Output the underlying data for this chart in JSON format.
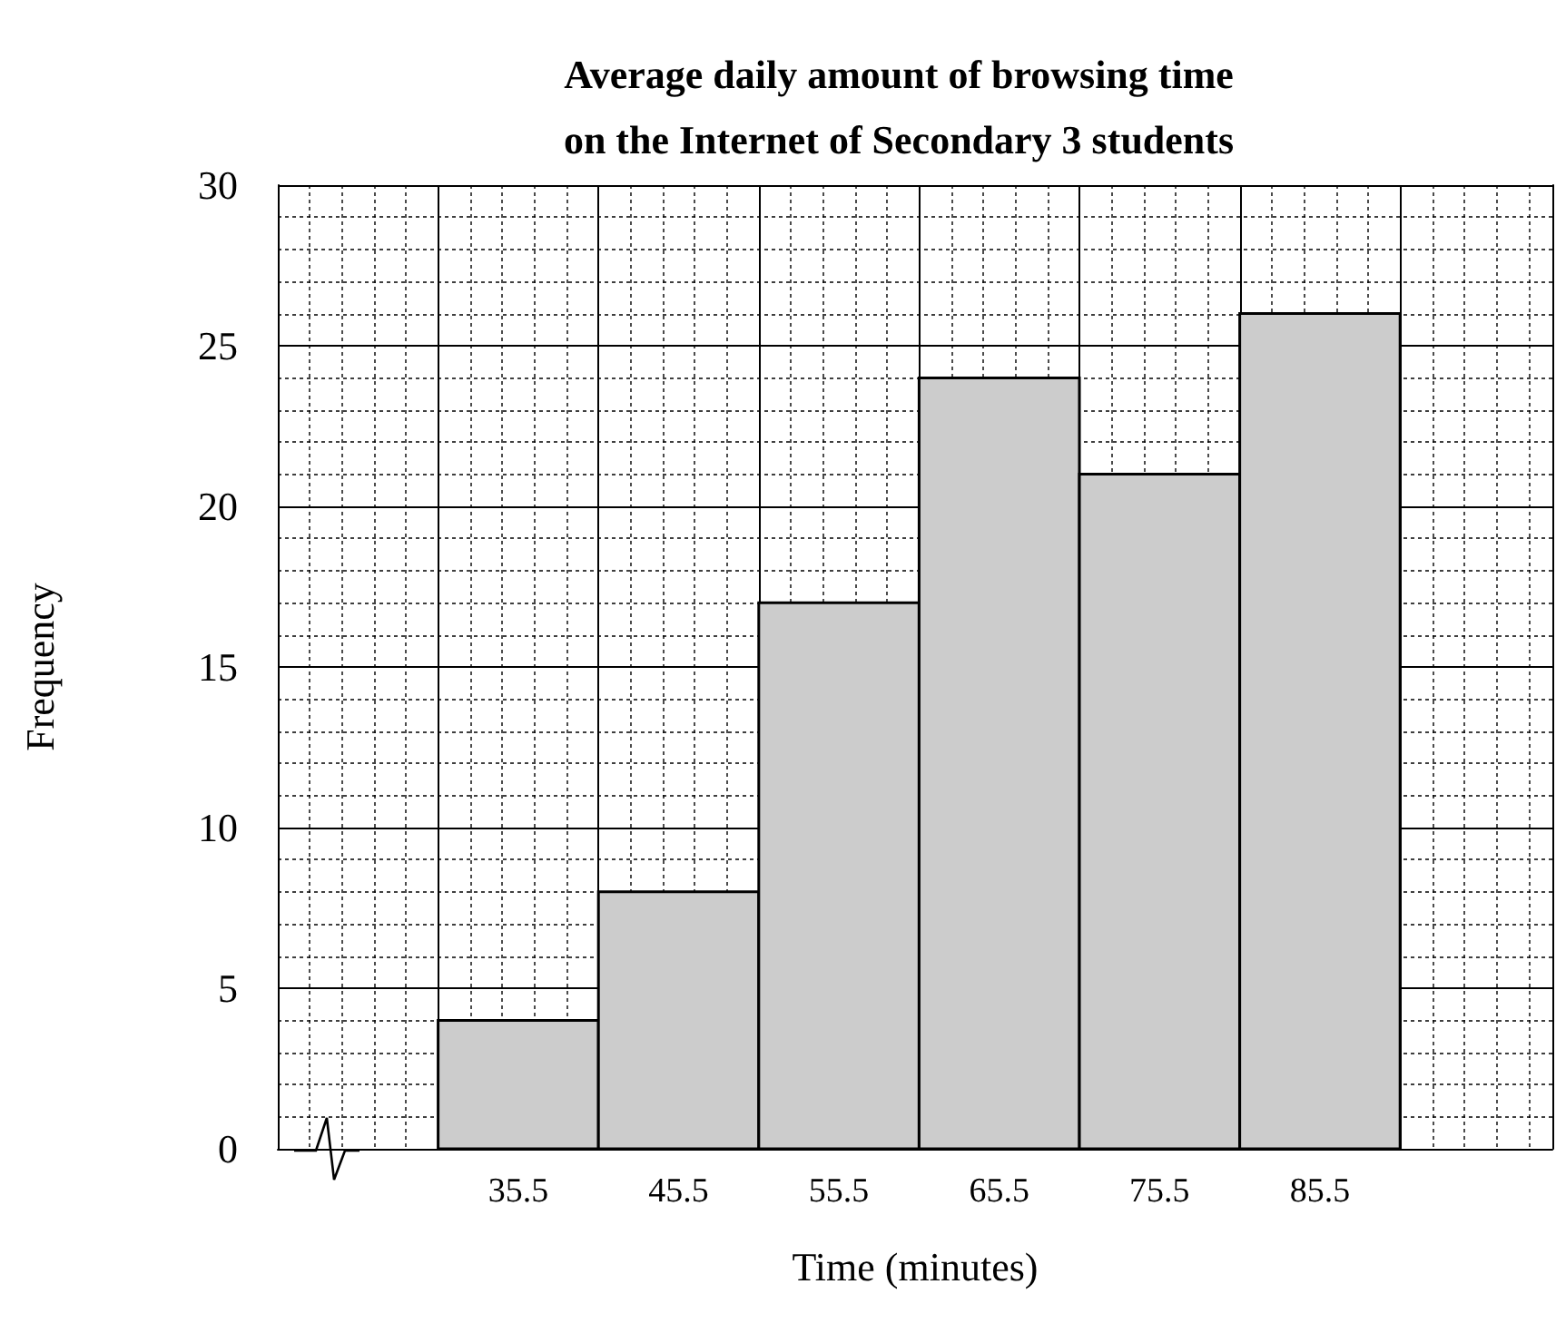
{
  "chart_data": {
    "type": "histogram",
    "title": "Average daily amount of browsing time\non the Internet of Secondary 3 students",
    "xlabel": "Time (minutes)",
    "ylabel": "Frequency",
    "bins": [
      30.5,
      40.5,
      50.5,
      60.5,
      70.5,
      80.5,
      90.5
    ],
    "values": [
      4,
      8,
      17,
      24,
      21,
      26
    ],
    "color": "#cccccc",
    "xlim": [
      20.5,
      100
    ],
    "xticks": [
      35.5,
      45.5,
      55.5,
      65.5,
      75.5,
      85.5
    ],
    "ylim": [
      0,
      30
    ],
    "yticks": [
      0,
      5,
      10,
      15,
      20,
      25,
      30
    ],
    "grid": true
  }
}
